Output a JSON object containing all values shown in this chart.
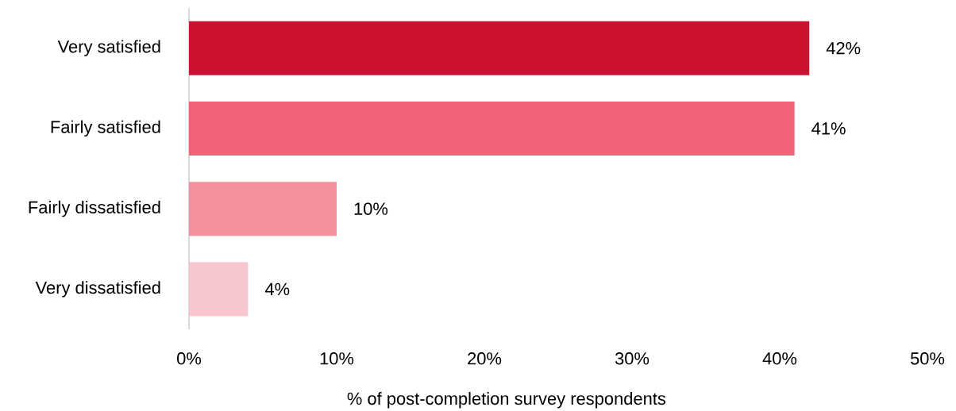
{
  "chart_data": {
    "type": "bar",
    "orientation": "horizontal",
    "categories": [
      "Very satisfied",
      "Fairly satisfied",
      "Fairly dissatisfied",
      "Very dissatisfied"
    ],
    "values": [
      42,
      41,
      10,
      4
    ],
    "colors": [
      "#cc1230",
      "#f26178",
      "#f5919f",
      "#f8c6cf"
    ],
    "value_labels": [
      "42%",
      "41%",
      "10%",
      "4%"
    ],
    "xlim": [
      0,
      50
    ],
    "xticks": [
      {
        "value": 0,
        "label": "0%"
      },
      {
        "value": 10,
        "label": "10%"
      },
      {
        "value": 20,
        "label": "20%"
      },
      {
        "value": 30,
        "label": "30%"
      },
      {
        "value": 40,
        "label": "40%"
      },
      {
        "value": 50,
        "label": "50%"
      }
    ],
    "xlabel": "% of post-completion survey respondents"
  }
}
